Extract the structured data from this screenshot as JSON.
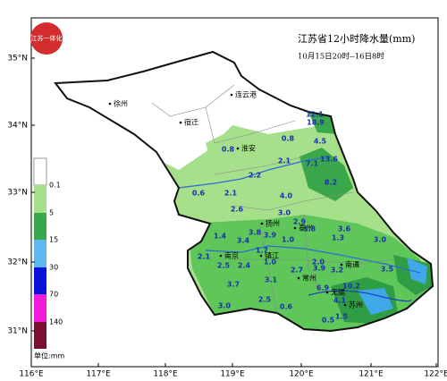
{
  "header": {
    "title": "江苏省12小时降水量(mm)",
    "subtitle": "10月15日20时--16日8时",
    "logo": "江苏一体化"
  },
  "axes": {
    "lon": [
      "116°E",
      "117°E",
      "118°E",
      "119°E",
      "120°E",
      "121°E",
      "122°E"
    ],
    "lat": [
      "35°N",
      "34°N",
      "33°N",
      "32°N",
      "31°N"
    ]
  },
  "legend": {
    "levels": [
      "0.1",
      "5",
      "15",
      "30",
      "70",
      "140"
    ],
    "unit": "单位:mm"
  },
  "cities": [
    "徐州",
    "连云港",
    "宿迁",
    "淮安",
    "扬州",
    "泰州",
    "南京",
    "镇江",
    "常州",
    "南通",
    "无锡",
    "苏州"
  ],
  "rainfall": [
    "0.8",
    "12.1",
    "18.9",
    "4.5",
    "0.8",
    "2.1",
    "7.1",
    "13.6",
    "8.2",
    "2.2",
    "0.6",
    "2.1",
    "4.0",
    "2.6",
    "3.0",
    "2.9",
    "1.8",
    "1.4",
    "3.8",
    "3.4",
    "3.9",
    "1.0",
    "1.3",
    "3.0",
    "3.5",
    "2.1",
    "2.5",
    "2.4",
    "1.0",
    "1.7",
    "2.0",
    "2.7",
    "3.9",
    "3.2",
    "3.6",
    "3.7",
    "3.1",
    "6.9",
    "10.2",
    "2.5",
    "0.6",
    "4.1",
    "0.5",
    "3.0",
    "1.5"
  ]
}
